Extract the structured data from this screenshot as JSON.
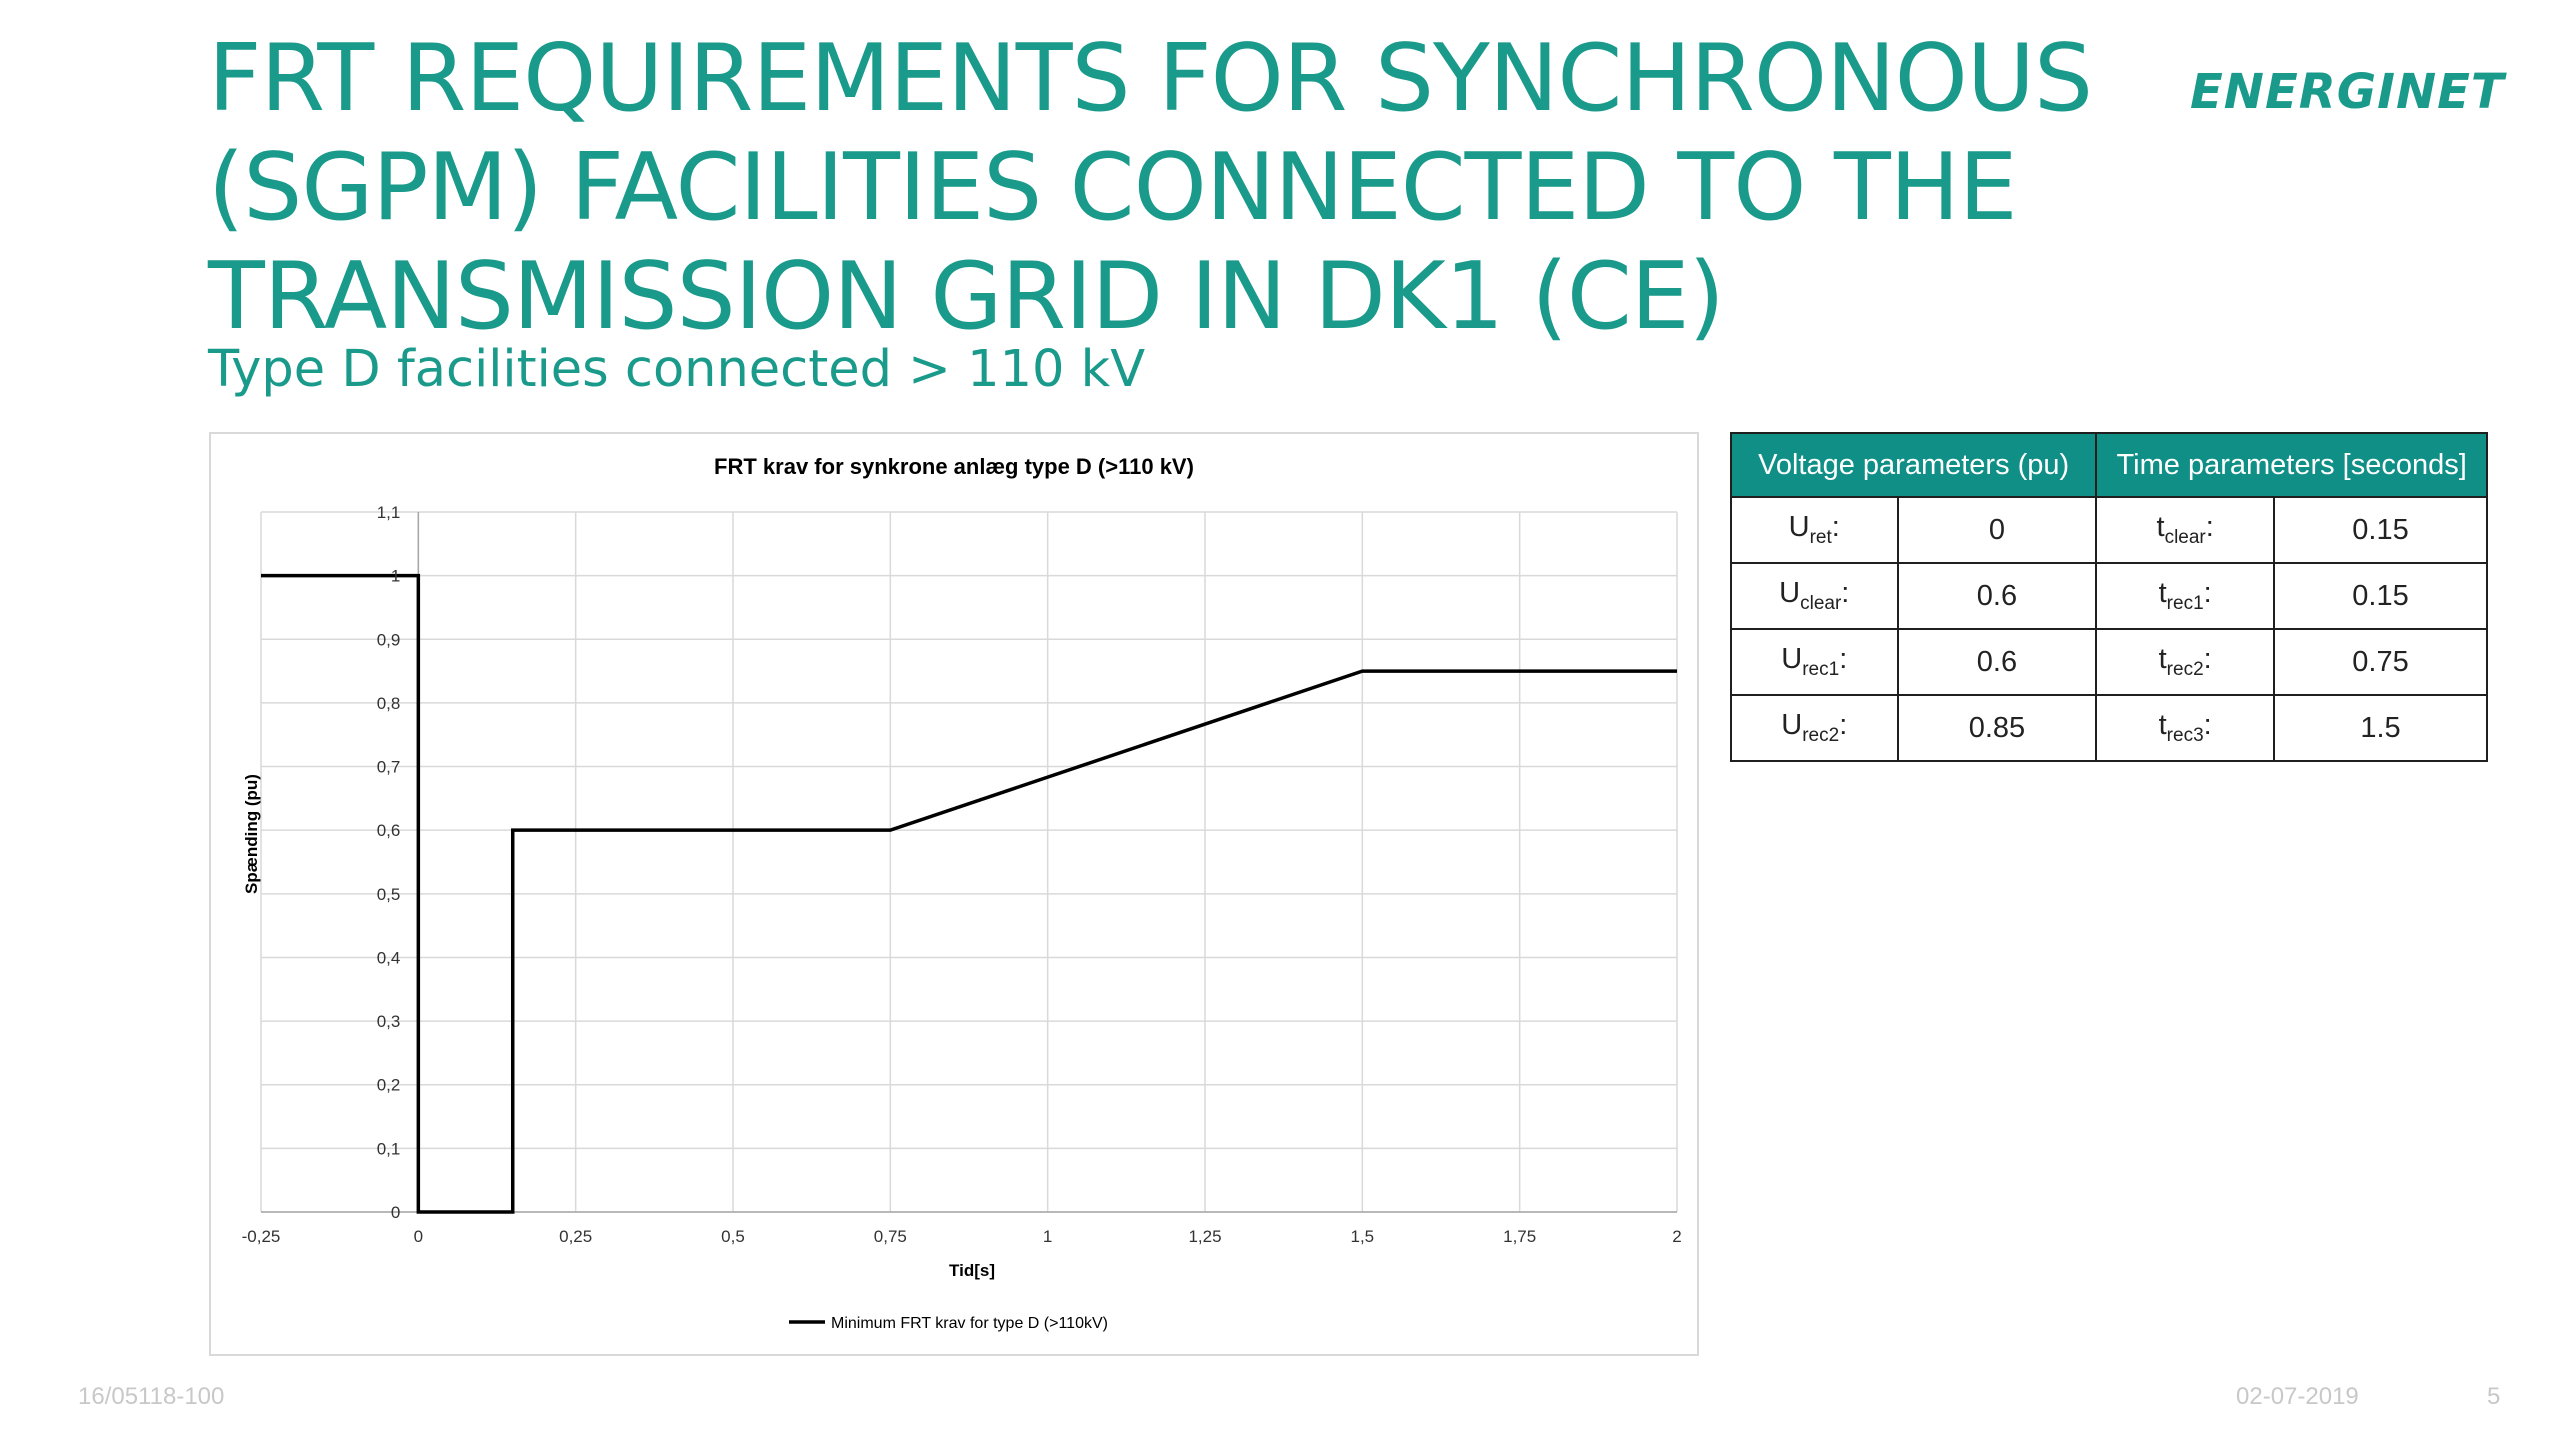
{
  "slide": {
    "title_lines": [
      "FRT REQUIREMENTS FOR SYNCHRONOUS",
      "(SGPM) FACILITIES CONNECTED TO THE",
      "TRANSMISSION GRID IN DK1 (CE)"
    ],
    "subtitle": "Type D facilities connected > 110 kV",
    "logo_text": "ENERGINET",
    "footer_left": "16/05118-100",
    "footer_date": "02-07-2019",
    "footer_page": "5",
    "accent_color": "#1a9a8a",
    "table_header_color": "#0f8f86"
  },
  "table": {
    "headers": [
      "Voltage parameters (pu)",
      "Time parameters [seconds]"
    ],
    "rows": [
      {
        "u_base": "U",
        "u_sub": "ret",
        "u_value": "0",
        "t_base": "t",
        "t_sub": "clear",
        "t_value": "0.15"
      },
      {
        "u_base": "U",
        "u_sub": "clear",
        "u_value": "0.6",
        "t_base": "t",
        "t_sub": "rec1",
        "t_value": "0.15"
      },
      {
        "u_base": "U",
        "u_sub": "rec1",
        "u_value": "0.6",
        "t_base": "t",
        "t_sub": "rec2",
        "t_value": "0.75"
      },
      {
        "u_base": "U",
        "u_sub": "rec2",
        "u_value": "0.85",
        "t_base": "t",
        "t_sub": "rec3",
        "t_value": "1.5"
      }
    ]
  },
  "chart_data": {
    "type": "line",
    "title": "FRT krav for synkrone anlæg type D (>110 kV)",
    "xlabel": "Tid[s]",
    "ylabel": "Spænding (pu)",
    "xlim": [
      -0.25,
      2
    ],
    "ylim": [
      0,
      1.1
    ],
    "x_ticks": [
      -0.25,
      0,
      0.25,
      0.5,
      0.75,
      1,
      1.25,
      1.5,
      1.75,
      2
    ],
    "x_tick_labels": [
      "-0,25",
      "0",
      "0,25",
      "0,5",
      "0,75",
      "1",
      "1,25",
      "1,5",
      "1,75",
      "2"
    ],
    "y_ticks": [
      0,
      0.1,
      0.2,
      0.3,
      0.4,
      0.5,
      0.6,
      0.7,
      0.8,
      0.9,
      1,
      1.1
    ],
    "y_tick_labels": [
      "0",
      "0,1",
      "0,2",
      "0,3",
      "0,4",
      "0,5",
      "0,6",
      "0,7",
      "0,8",
      "0,9",
      "1",
      "1,1"
    ],
    "grid": true,
    "legend_position": "bottom",
    "series": [
      {
        "name": "Minimum FRT krav for type D (>110kV)",
        "color": "#000000",
        "x": [
          -0.25,
          0,
          0,
          0.15,
          0.15,
          0.75,
          1.5,
          2
        ],
        "y": [
          1,
          1,
          0,
          0,
          0.6,
          0.6,
          0.85,
          0.85
        ]
      }
    ]
  }
}
